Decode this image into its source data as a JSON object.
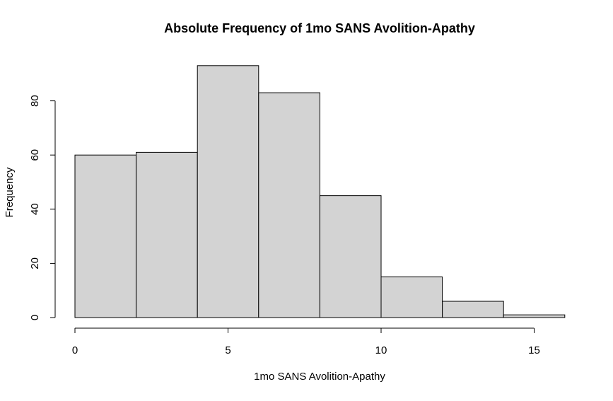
{
  "chart_data": {
    "type": "bar",
    "subtype": "histogram",
    "title": "Absolute Frequency of 1mo SANS Avolition-Apathy",
    "xlabel": "1mo SANS Avolition-Apathy",
    "ylabel": "Frequency",
    "bins": [
      {
        "start": 0,
        "end": 2,
        "value": 60
      },
      {
        "start": 2,
        "end": 4,
        "value": 61
      },
      {
        "start": 4,
        "end": 6,
        "value": 93
      },
      {
        "start": 6,
        "end": 8,
        "value": 83
      },
      {
        "start": 8,
        "end": 10,
        "value": 45
      },
      {
        "start": 10,
        "end": 12,
        "value": 15
      },
      {
        "start": 12,
        "end": 14,
        "value": 6
      },
      {
        "start": 14,
        "end": 16,
        "value": 1
      }
    ],
    "xlim": [
      0,
      16
    ],
    "ylim": [
      0,
      93
    ],
    "xticks": [
      "0",
      "5",
      "10",
      "15"
    ],
    "yticks": [
      "0",
      "20",
      "40",
      "60",
      "80"
    ],
    "grid": false,
    "bar_color": "#d3d3d3",
    "edge_color": "#000000"
  }
}
